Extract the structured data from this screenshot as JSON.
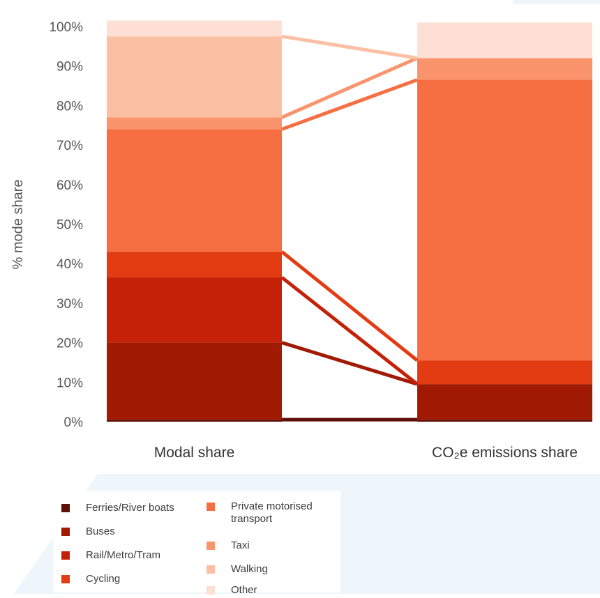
{
  "chart_data": {
    "type": "bar",
    "stacked": true,
    "percent": true,
    "ylabel": "% mode share",
    "ylim": [
      0,
      100
    ],
    "yticks": [
      "0%",
      "10%",
      "20%",
      "30%",
      "40%",
      "50%",
      "60%",
      "70%",
      "80%",
      "90%",
      "100%"
    ],
    "categories": [
      "Modal share",
      "CO₂e emissions share"
    ],
    "series": [
      {
        "name": "Ferries/River boats",
        "color": "#5e0f08",
        "values": [
          0.5,
          0.5
        ]
      },
      {
        "name": "Buses",
        "color": "#a01a04",
        "values": [
          19.5,
          9
        ]
      },
      {
        "name": "Rail/Metro/Tram",
        "color": "#c42108",
        "values": [
          16.5,
          0
        ]
      },
      {
        "name": "Cycling",
        "color": "#e43c12",
        "values": [
          6.5,
          6
        ]
      },
      {
        "name": "Private motorised transport",
        "color": "#f66f43",
        "values": [
          31,
          71
        ]
      },
      {
        "name": "Taxi",
        "color": "#f9946c",
        "values": [
          3,
          5.5
        ]
      },
      {
        "name": "Walking",
        "color": "#fbc0a4",
        "values": [
          20.5,
          0
        ]
      },
      {
        "name": "Other",
        "color": "#fde0d3",
        "values": [
          4,
          9
        ]
      }
    ],
    "grid": false,
    "legend": "bottom-left",
    "connectors": true
  }
}
